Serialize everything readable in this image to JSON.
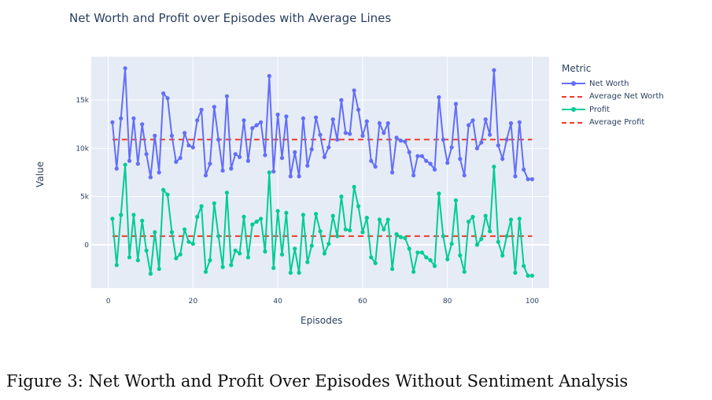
{
  "title": "Net Worth and Profit over Episodes with Average Lines",
  "caption": "Figure 3: Net Worth and Profit Over Episodes Without Sentiment Analysis",
  "chart_data": {
    "type": "line",
    "title": "Net Worth and Profit over Episodes with Average Lines",
    "xlabel": "Episodes",
    "ylabel": "Value",
    "xlim": [
      -4,
      104
    ],
    "ylim": [
      -4500,
      19500
    ],
    "x_ticks": [
      0,
      20,
      40,
      60,
      80,
      100
    ],
    "y_ticks": [
      0,
      5000,
      10000,
      15000
    ],
    "x_tick_labels": [
      "0",
      "20",
      "40",
      "60",
      "80",
      "100"
    ],
    "y_tick_labels": [
      "0",
      "5k",
      "10k",
      "15k"
    ],
    "grid": true,
    "legend_position": "top-right",
    "legend_title": "Metric",
    "colors": {
      "net_worth": "#636efa",
      "profit": "#00cc96",
      "average": "#ef3b2c",
      "plot_bg": "#e5ecf6",
      "grid": "#ffffff"
    },
    "series": [
      {
        "name": "Net Worth",
        "color": "#636efa",
        "x": [
          1,
          2,
          3,
          4,
          5,
          6,
          7,
          8,
          9,
          10,
          11,
          12,
          13,
          14,
          15,
          16,
          17,
          18,
          19,
          20,
          21,
          22,
          23,
          24,
          25,
          26,
          27,
          28,
          29,
          30,
          31,
          32,
          33,
          34,
          35,
          36,
          37,
          38,
          39,
          40,
          41,
          42,
          43,
          44,
          45,
          46,
          47,
          48,
          49,
          50,
          51,
          52,
          53,
          54,
          55,
          56,
          57,
          58,
          59,
          60,
          61,
          62,
          63,
          64,
          65,
          66,
          67,
          68,
          69,
          70,
          71,
          72,
          73,
          74,
          75,
          76,
          77,
          78,
          79,
          80,
          81,
          82,
          83,
          84,
          85,
          86,
          87,
          88,
          89,
          90,
          91,
          92,
          93,
          94,
          95,
          96,
          97,
          98,
          99,
          100
        ],
        "values": [
          12700,
          7900,
          13100,
          18300,
          8700,
          13100,
          8400,
          12500,
          9400,
          7000,
          11300,
          7500,
          15700,
          15200,
          11300,
          8600,
          9000,
          11600,
          10300,
          10100,
          12900,
          14000,
          7200,
          8400,
          14300,
          10900,
          7700,
          15400,
          7900,
          9400,
          9100,
          12900,
          8700,
          12100,
          12400,
          12700,
          9300,
          17500,
          7600,
          13500,
          9000,
          13300,
          7100,
          9600,
          7100,
          13100,
          8200,
          9900,
          13200,
          11400,
          9100,
          10100,
          13000,
          10900,
          15000,
          11600,
          11500,
          16000,
          14000,
          11300,
          12800,
          8700,
          8100,
          12600,
          11600,
          12600,
          7500,
          11100,
          10800,
          10700,
          9600,
          7200,
          9200,
          9200,
          8700,
          8400,
          7800,
          15300,
          10900,
          8500,
          10100,
          14600,
          8900,
          7200,
          12400,
          12900,
          10000,
          10600,
          13000,
          11400,
          18100,
          10300,
          8900,
          10900,
          12600,
          7100,
          12700,
          7800,
          6800,
          6800
        ]
      },
      {
        "name": "Average Net Worth",
        "color": "#ef3b2c",
        "dash": true,
        "x": [
          1,
          100
        ],
        "values": [
          10900,
          10900
        ]
      },
      {
        "name": "Profit",
        "color": "#00cc96",
        "x": [
          1,
          2,
          3,
          4,
          5,
          6,
          7,
          8,
          9,
          10,
          11,
          12,
          13,
          14,
          15,
          16,
          17,
          18,
          19,
          20,
          21,
          22,
          23,
          24,
          25,
          26,
          27,
          28,
          29,
          30,
          31,
          32,
          33,
          34,
          35,
          36,
          37,
          38,
          39,
          40,
          41,
          42,
          43,
          44,
          45,
          46,
          47,
          48,
          49,
          50,
          51,
          52,
          53,
          54,
          55,
          56,
          57,
          58,
          59,
          60,
          61,
          62,
          63,
          64,
          65,
          66,
          67,
          68,
          69,
          70,
          71,
          72,
          73,
          74,
          75,
          76,
          77,
          78,
          79,
          80,
          81,
          82,
          83,
          84,
          85,
          86,
          87,
          88,
          89,
          90,
          91,
          92,
          93,
          94,
          95,
          96,
          97,
          98,
          99,
          100
        ],
        "values": [
          2700,
          -2100,
          3100,
          8300,
          -1300,
          3100,
          -1600,
          2500,
          -600,
          -3000,
          1300,
          -2500,
          5700,
          5200,
          1300,
          -1400,
          -1000,
          1600,
          300,
          100,
          2900,
          4000,
          -2800,
          -1600,
          4300,
          900,
          -2300,
          5400,
          -2100,
          -600,
          -900,
          2900,
          -1300,
          2100,
          2400,
          2700,
          -700,
          7500,
          -2400,
          3500,
          -1000,
          3300,
          -2900,
          -400,
          -2900,
          3100,
          -1800,
          -100,
          3200,
          1400,
          -900,
          100,
          3000,
          900,
          5000,
          1600,
          1500,
          6000,
          4000,
          1300,
          2800,
          -1300,
          -1900,
          2600,
          1600,
          2600,
          -2500,
          1100,
          800,
          700,
          -400,
          -2800,
          -800,
          -800,
          -1300,
          -1600,
          -2200,
          5300,
          900,
          -1500,
          100,
          4600,
          -1100,
          -2800,
          2400,
          2900,
          0,
          600,
          3000,
          1400,
          8100,
          300,
          -1100,
          900,
          2600,
          -2900,
          2700,
          -2200,
          -3200,
          -3200
        ]
      },
      {
        "name": "Average Profit",
        "color": "#ef3b2c",
        "dash": true,
        "x": [
          1,
          100
        ],
        "values": [
          900,
          900
        ]
      }
    ]
  }
}
